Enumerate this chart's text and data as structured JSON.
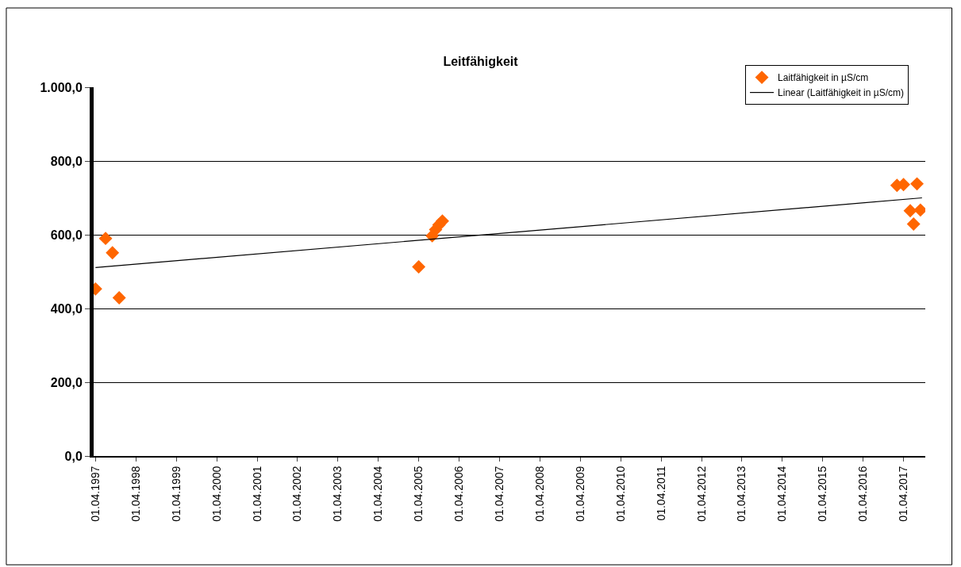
{
  "chart_data": {
    "type": "scatter",
    "title": "Leitfähigkeit",
    "series": [
      {
        "name": "Laitfähigkeit in µS/cm",
        "color": "#ff6600",
        "marker": "diamond",
        "x": [
          "1997-04-01",
          "1997-07-01",
          "1997-09-01",
          "1997-11-01",
          "2005-04-01",
          "2005-08-01",
          "2005-09-01",
          "2005-10-01",
          "2005-11-01",
          "2017-02-01",
          "2017-04-01",
          "2017-06-01",
          "2017-07-01",
          "2017-08-01",
          "2017-09-01"
        ],
        "values": [
          453,
          590,
          551,
          429,
          513,
          597,
          614,
          627,
          637,
          734,
          736,
          665,
          629,
          738,
          667
        ]
      },
      {
        "name": "Linear (Laitfähigkeit in µS/cm)",
        "color": "#000000",
        "type": "line",
        "marker": "none",
        "x": [
          "1997-04-01",
          "2017-09-15"
        ],
        "values": [
          511,
          700
        ]
      }
    ],
    "xlim": [
      "1997-03-15",
      "2017-10-15"
    ],
    "xticks": [
      {
        "value": "1997-04-01",
        "label": "01.04.1997"
      },
      {
        "value": "1998-04-01",
        "label": "01.04.1998"
      },
      {
        "value": "1999-04-01",
        "label": "01.04.1999"
      },
      {
        "value": "2000-04-01",
        "label": "01.04.2000"
      },
      {
        "value": "2001-04-01",
        "label": "01.04.2001"
      },
      {
        "value": "2002-04-01",
        "label": "01.04.2002"
      },
      {
        "value": "2003-04-01",
        "label": "01.04.2003"
      },
      {
        "value": "2004-04-01",
        "label": "01.04.2004"
      },
      {
        "value": "2005-04-01",
        "label": "01.04.2005"
      },
      {
        "value": "2006-04-01",
        "label": "01.04.2006"
      },
      {
        "value": "2007-04-01",
        "label": "01.04.2007"
      },
      {
        "value": "2008-04-01",
        "label": "01.04.2008"
      },
      {
        "value": "2009-04-01",
        "label": "01.04.2009"
      },
      {
        "value": "2010-04-01",
        "label": "01.04.2010"
      },
      {
        "value": "2011-04-01",
        "label": "01.04.2011"
      },
      {
        "value": "2012-04-01",
        "label": "01.04.2012"
      },
      {
        "value": "2013-04-01",
        "label": "01.04.2013"
      },
      {
        "value": "2014-04-01",
        "label": "01.04.2014"
      },
      {
        "value": "2015-04-01",
        "label": "01.04.2015"
      },
      {
        "value": "2016-04-01",
        "label": "01.04.2016"
      },
      {
        "value": "2017-04-01",
        "label": "01.04.2017"
      }
    ],
    "ylim": [
      0,
      1000
    ],
    "yticks": [
      {
        "value": 0,
        "label": "0,0"
      },
      {
        "value": 200,
        "label": "200,0"
      },
      {
        "value": 400,
        "label": "400,0"
      },
      {
        "value": 600,
        "label": "600,0"
      },
      {
        "value": 800,
        "label": "800,0"
      },
      {
        "value": 1000,
        "label": "1.000,0"
      }
    ],
    "grid": "y",
    "legend": "top right"
  }
}
